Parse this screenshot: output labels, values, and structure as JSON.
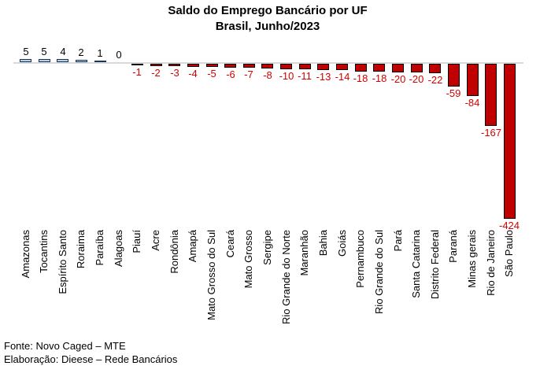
{
  "chart_data": {
    "type": "bar",
    "title": "Saldo do Emprego Bancário por UF",
    "subtitle": "Brasil, Junho/2023",
    "categories": [
      "Amazonas",
      "Tocantins",
      "Espírito Santo",
      "Roraima",
      "Paraíba",
      "Alagoas",
      "Piauí",
      "Acre",
      "Rondônia",
      "Amapá",
      "Mato Grosso do Sul",
      "Ceará",
      "Mato Grosso",
      "Sergipe",
      "Rio Grande do Norte",
      "Maranhão",
      "Bahia",
      "Goiás",
      "Pernambuco",
      "Rio Grande do Sul",
      "Pará",
      "Santa Catarina",
      "Distrito Federal",
      "Paraná",
      "Minas gerais",
      "Rio de Janeiro",
      "São Paulo"
    ],
    "values": [
      5,
      5,
      4,
      2,
      1,
      0,
      -1,
      -2,
      -3,
      -4,
      -5,
      -6,
      -7,
      -8,
      -10,
      -11,
      -13,
      -14,
      -18,
      -18,
      -20,
      -20,
      -22,
      -59,
      -84,
      -167,
      -424
    ],
    "bar_labels": "outside-end",
    "gridlines": false,
    "legend": "none",
    "ylim": [
      -430,
      10
    ],
    "colors": {
      "positive_fill": "#B8CCE4",
      "positive_border": "#16365C",
      "negative_fill": "#C00000",
      "negative_border": "#000000",
      "positive_label": "#000000",
      "negative_label": "#D40000",
      "axis_line": "#D9D9D9"
    }
  },
  "footer": {
    "fonte": "Fonte: Novo Caged – MTE",
    "elaboracao": "Elaboração: Dieese – Rede Bancários"
  }
}
